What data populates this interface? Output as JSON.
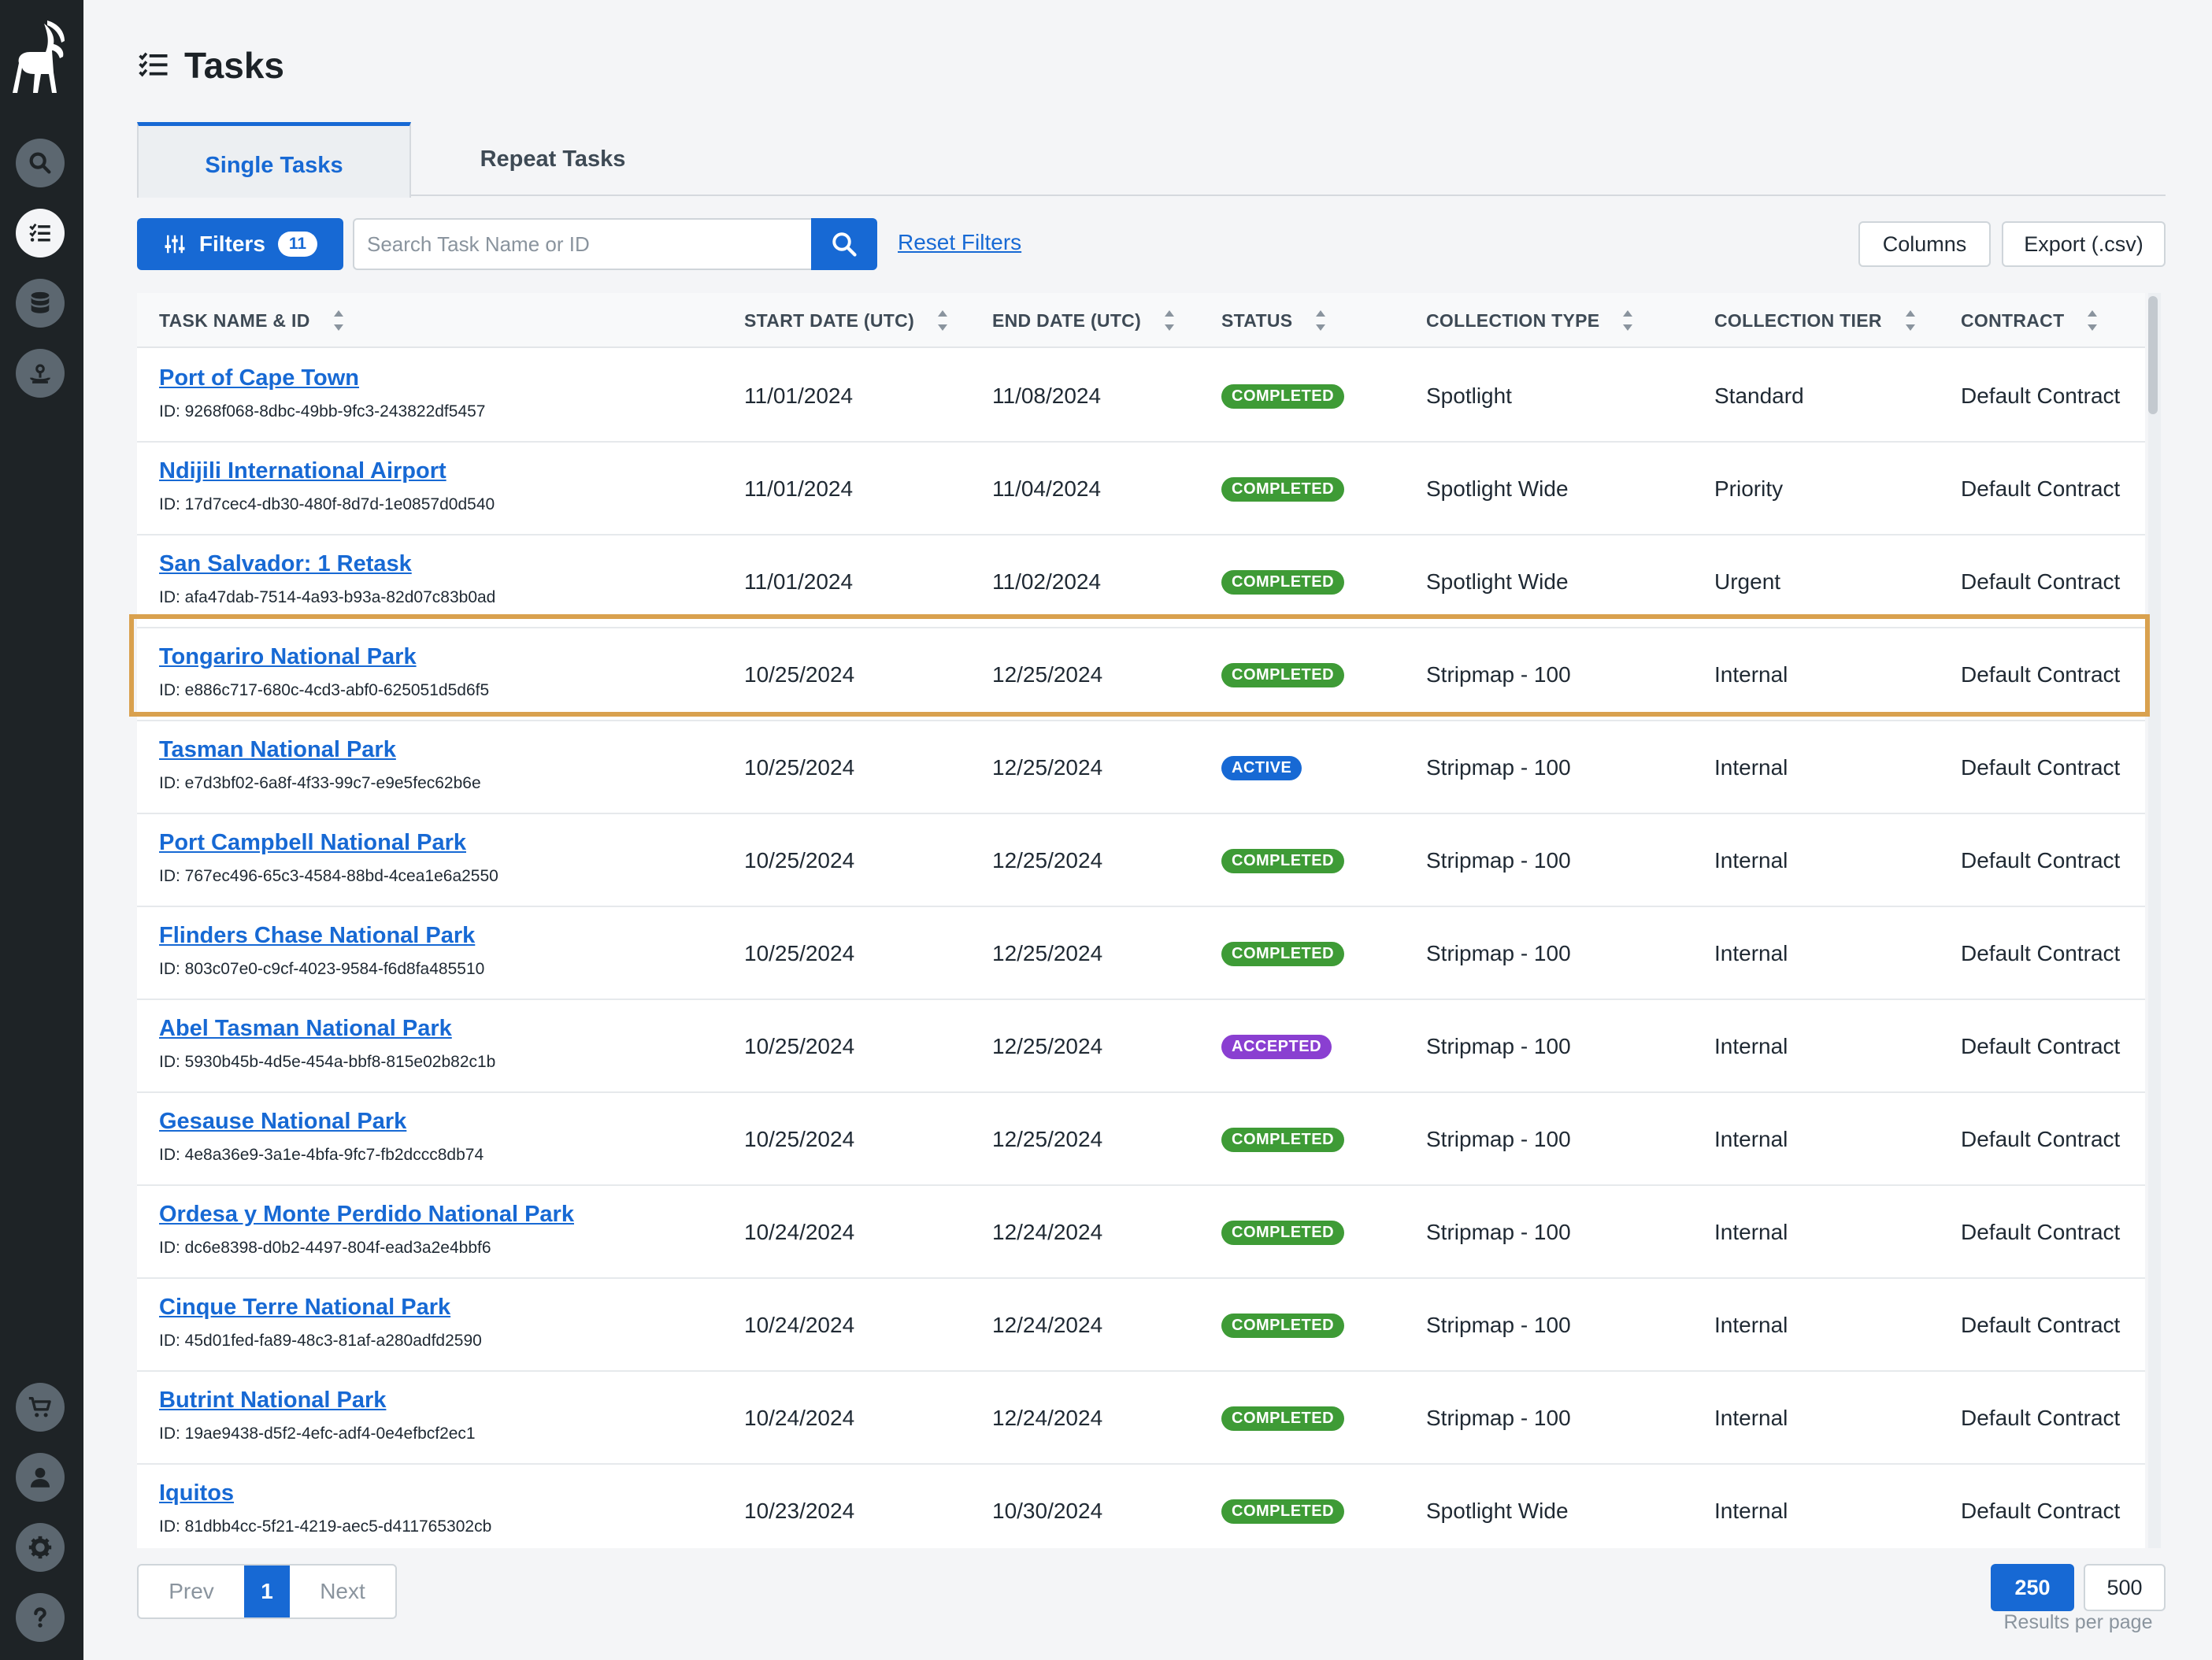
{
  "page": {
    "title": "Tasks"
  },
  "tabs": [
    {
      "label": "Single Tasks",
      "active": true
    },
    {
      "label": "Repeat Tasks",
      "active": false
    }
  ],
  "toolbar": {
    "filters_label": "Filters",
    "filters_count": "11",
    "search_placeholder": "Search Task Name or ID",
    "search_value": "",
    "reset_label": "Reset Filters",
    "columns_label": "Columns",
    "export_label": "Export (.csv)"
  },
  "sidebar": {
    "top_icons": [
      "search-icon",
      "task-list-icon",
      "database-icon",
      "satellite-icon"
    ],
    "bottom_icons": [
      "cart-icon",
      "user-icon",
      "gear-icon",
      "help-icon"
    ]
  },
  "table": {
    "columns": [
      "TASK NAME & ID",
      "START DATE (UTC)",
      "END DATE (UTC)",
      "STATUS",
      "COLLECTION TYPE",
      "COLLECTION TIER",
      "CONTRACT"
    ],
    "rows": [
      {
        "name": "Port of Cape Town",
        "id": "ID: 9268f068-8dbc-49bb-9fc3-243822df5457",
        "start": "11/01/2024",
        "end": "11/08/2024",
        "status": "COMPLETED",
        "type": "Spotlight",
        "tier": "Standard",
        "contract": "Default Contract"
      },
      {
        "name": "Ndijili International Airport",
        "id": "ID: 17d7cec4-db30-480f-8d7d-1e0857d0d540",
        "start": "11/01/2024",
        "end": "11/04/2024",
        "status": "COMPLETED",
        "type": "Spotlight Wide",
        "tier": "Priority",
        "contract": "Default Contract"
      },
      {
        "name": "San Salvador: 1 Retask",
        "id": "ID: afa47dab-7514-4a93-b93a-82d07c83b0ad",
        "start": "11/01/2024",
        "end": "11/02/2024",
        "status": "COMPLETED",
        "type": "Spotlight Wide",
        "tier": "Urgent",
        "contract": "Default Contract"
      },
      {
        "name": "Tongariro National Park",
        "id": "ID: e886c717-680c-4cd3-abf0-625051d5d6f5",
        "start": "10/25/2024",
        "end": "12/25/2024",
        "status": "COMPLETED",
        "type": "Stripmap - 100",
        "tier": "Internal",
        "contract": "Default Contract"
      },
      {
        "name": "Tasman National Park",
        "id": "ID: e7d3bf02-6a8f-4f33-99c7-e9e5fec62b6e",
        "start": "10/25/2024",
        "end": "12/25/2024",
        "status": "ACTIVE",
        "type": "Stripmap - 100",
        "tier": "Internal",
        "contract": "Default Contract"
      },
      {
        "name": "Port Campbell National Park",
        "id": "ID: 767ec496-65c3-4584-88bd-4cea1e6a2550",
        "start": "10/25/2024",
        "end": "12/25/2024",
        "status": "COMPLETED",
        "type": "Stripmap - 100",
        "tier": "Internal",
        "contract": "Default Contract"
      },
      {
        "name": "Flinders Chase National Park",
        "id": "ID: 803c07e0-c9cf-4023-9584-f6d8fa485510",
        "start": "10/25/2024",
        "end": "12/25/2024",
        "status": "COMPLETED",
        "type": "Stripmap - 100",
        "tier": "Internal",
        "contract": "Default Contract"
      },
      {
        "name": "Abel Tasman National Park",
        "id": "ID: 5930b45b-4d5e-454a-bbf8-815e02b82c1b",
        "start": "10/25/2024",
        "end": "12/25/2024",
        "status": "ACCEPTED",
        "type": "Stripmap - 100",
        "tier": "Internal",
        "contract": "Default Contract"
      },
      {
        "name": "Gesause National Park",
        "id": "ID: 4e8a36e9-3a1e-4bfa-9fc7-fb2dccc8db74",
        "start": "10/25/2024",
        "end": "12/25/2024",
        "status": "COMPLETED",
        "type": "Stripmap - 100",
        "tier": "Internal",
        "contract": "Default Contract"
      },
      {
        "name": "Ordesa y Monte Perdido National Park",
        "id": "ID: dc6e8398-d0b2-4497-804f-ead3a2e4bbf6",
        "start": "10/24/2024",
        "end": "12/24/2024",
        "status": "COMPLETED",
        "type": "Stripmap - 100",
        "tier": "Internal",
        "contract": "Default Contract"
      },
      {
        "name": "Cinque Terre National Park",
        "id": "ID: 45d01fed-fa89-48c3-81af-a280adfd2590",
        "start": "10/24/2024",
        "end": "12/24/2024",
        "status": "COMPLETED",
        "type": "Stripmap - 100",
        "tier": "Internal",
        "contract": "Default Contract"
      },
      {
        "name": "Butrint National Park",
        "id": "ID: 19ae9438-d5f2-4efc-adf4-0e4efbcf2ec1",
        "start": "10/24/2024",
        "end": "12/24/2024",
        "status": "COMPLETED",
        "type": "Stripmap - 100",
        "tier": "Internal",
        "contract": "Default Contract"
      },
      {
        "name": "Iquitos",
        "id": "ID: 81dbb4cc-5f21-4219-aec5-d411765302cb",
        "start": "10/23/2024",
        "end": "10/30/2024",
        "status": "COMPLETED",
        "type": "Spotlight Wide",
        "tier": "Internal",
        "contract": "Default Contract"
      }
    ],
    "highlighted_row": 3
  },
  "status_colors": {
    "COMPLETED": "#3e9b36",
    "ACTIVE": "#1769d4",
    "ACCEPTED": "#8a3fd1"
  },
  "colors": {
    "accent": "#1769d4",
    "highlight": "#d9a14e",
    "sidebar": "#1e2326"
  },
  "pagination": {
    "prev": "Prev",
    "current": "1",
    "next": "Next"
  },
  "results_per_page": {
    "options": [
      "250",
      "500"
    ],
    "selected": "250",
    "label": "Results per page"
  }
}
